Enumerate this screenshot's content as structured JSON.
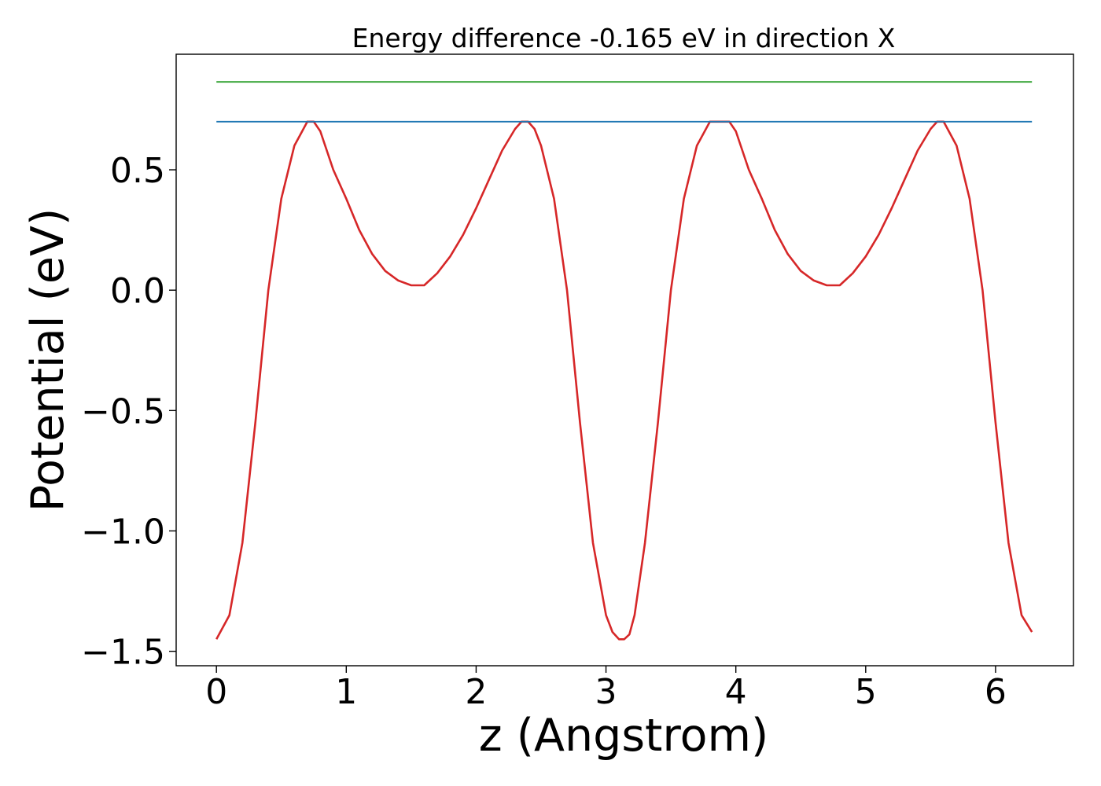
{
  "chart_data": {
    "type": "line",
    "title": "Energy difference -0.165 eV in direction X",
    "xlabel": "z (Angstrom)",
    "ylabel": "Potential (eV)",
    "xlim": [
      -0.31,
      6.6
    ],
    "ylim": [
      -1.56,
      0.98
    ],
    "xticks": [
      0,
      1,
      2,
      3,
      4,
      5,
      6
    ],
    "xtick_labels": [
      "0",
      "1",
      "2",
      "3",
      "4",
      "5",
      "6"
    ],
    "yticks": [
      0.5,
      0.0,
      -0.5,
      -1.0,
      -1.5
    ],
    "ytick_labels": [
      "0.5",
      "0.0",
      "−0.5",
      "−1.0",
      "−1.5"
    ],
    "grid": false,
    "series": [
      {
        "color": "#d62728",
        "x": [
          0.0,
          0.1,
          0.2,
          0.3,
          0.4,
          0.5,
          0.6,
          0.7,
          0.75,
          0.8,
          0.9,
          1.0,
          1.1,
          1.2,
          1.3,
          1.4,
          1.5,
          1.55,
          1.6,
          1.7,
          1.8,
          1.9,
          2.0,
          2.1,
          2.2,
          2.3,
          2.35,
          2.4,
          2.45,
          2.5,
          2.6,
          2.7,
          2.8,
          2.9,
          3.0,
          3.05,
          3.1,
          3.14,
          3.18,
          3.22,
          3.3,
          3.4,
          3.5,
          3.6,
          3.7,
          3.8,
          3.9,
          3.95,
          4.0,
          4.1,
          4.2,
          4.3,
          4.4,
          4.5,
          4.6,
          4.7,
          4.75,
          4.8,
          4.9,
          5.0,
          5.1,
          5.2,
          5.3,
          5.4,
          5.5,
          5.55,
          5.6,
          5.7,
          5.8,
          5.9,
          6.0,
          6.1,
          6.2,
          6.28
        ],
        "y": [
          -1.45,
          -1.35,
          -1.05,
          -0.55,
          0.0,
          0.38,
          0.6,
          0.7,
          0.7,
          0.66,
          0.5,
          0.38,
          0.25,
          0.15,
          0.08,
          0.04,
          0.02,
          0.02,
          0.02,
          0.07,
          0.14,
          0.23,
          0.34,
          0.46,
          0.58,
          0.67,
          0.7,
          0.7,
          0.67,
          0.6,
          0.38,
          0.0,
          -0.55,
          -1.05,
          -1.35,
          -1.42,
          -1.45,
          -1.45,
          -1.43,
          -1.35,
          -1.05,
          -0.55,
          0.0,
          0.38,
          0.6,
          0.7,
          0.7,
          0.7,
          0.66,
          0.5,
          0.38,
          0.25,
          0.15,
          0.08,
          0.04,
          0.02,
          0.02,
          0.02,
          0.07,
          0.14,
          0.23,
          0.34,
          0.46,
          0.58,
          0.67,
          0.7,
          0.7,
          0.6,
          0.38,
          0.0,
          -0.55,
          -1.05,
          -1.35,
          -1.42
        ]
      },
      {
        "color": "#1f77b4",
        "x": [
          0.0,
          6.28
        ],
        "y": [
          0.7,
          0.7
        ]
      },
      {
        "color": "#2ca02c",
        "x": [
          0.0,
          6.28
        ],
        "y": [
          0.865,
          0.865
        ]
      }
    ]
  }
}
